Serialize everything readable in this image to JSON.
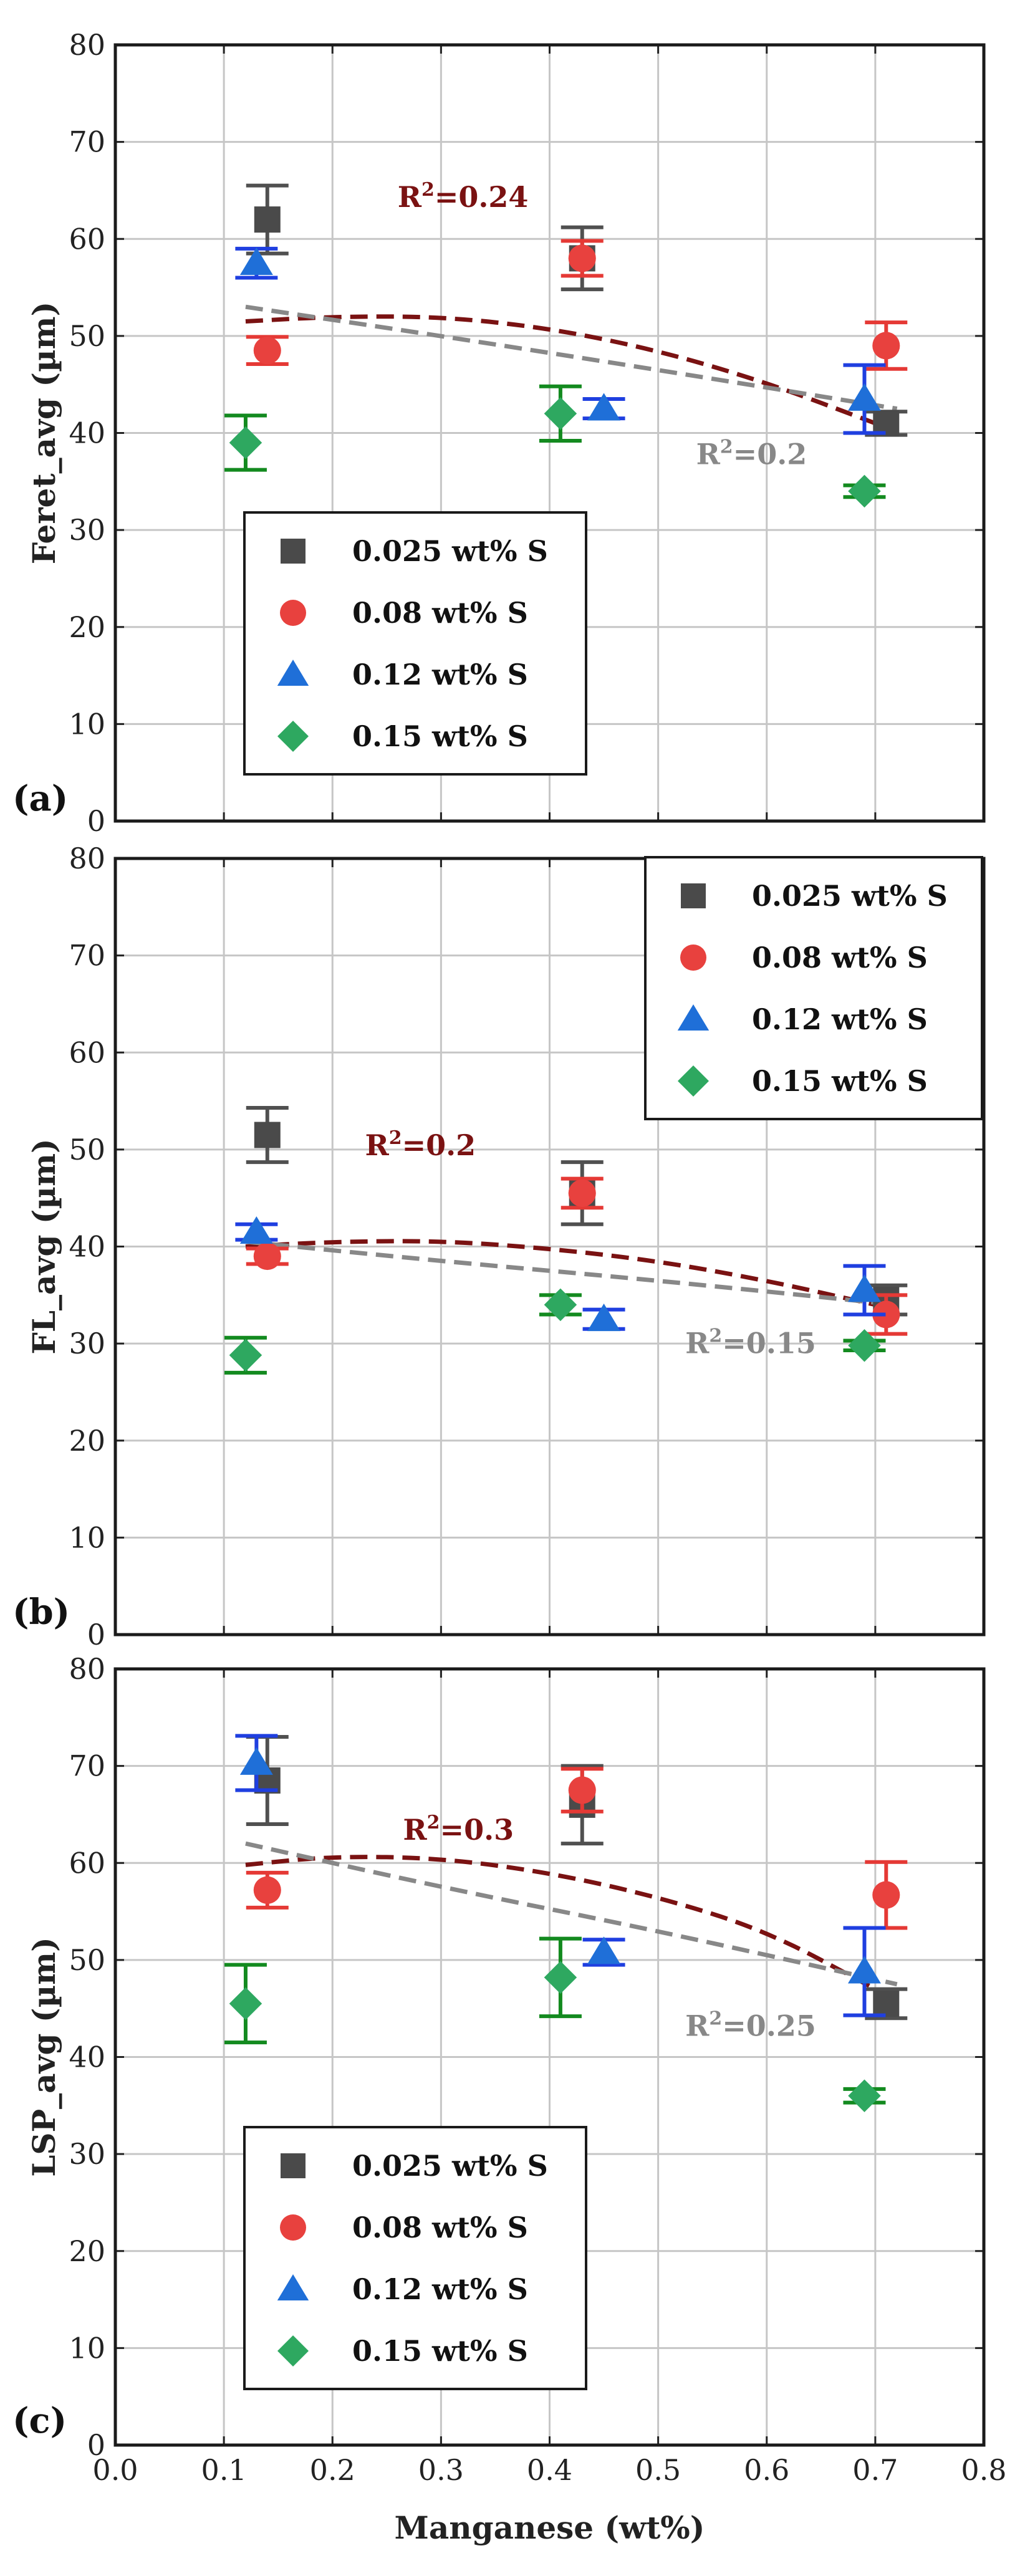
{
  "chart_data": [
    {
      "type": "scatter",
      "panel_label": "(a)",
      "ylabel": "Feret_avg (µm)",
      "xlabel": "",
      "xlim": [
        0.0,
        0.8
      ],
      "ylim": [
        0,
        80
      ],
      "x_ticks": [
        0.0,
        0.1,
        0.2,
        0.3,
        0.4,
        0.5,
        0.6,
        0.7,
        0.8
      ],
      "y_ticks": [
        0,
        10,
        20,
        30,
        40,
        50,
        60,
        70,
        80
      ],
      "y_tick_labels": [
        "0",
        "10",
        "20",
        "30",
        "40",
        "50",
        "60",
        "70",
        "80"
      ],
      "show_x_tick_labels": false,
      "grid": true,
      "legend_position": "bottom-left",
      "series": [
        {
          "name": "0.025 wt% S",
          "marker": "square",
          "color": "#4a4a4a",
          "err_color": "#505050",
          "points": [
            {
              "x": 0.14,
              "y": 62,
              "err": 3.5
            },
            {
              "x": 0.43,
              "y": 58,
              "err": 3.2
            },
            {
              "x": 0.71,
              "y": 41,
              "err": 1.2
            }
          ]
        },
        {
          "name": "0.08 wt% S",
          "marker": "circle",
          "color": "#e8413e",
          "err_color": "#e53935",
          "points": [
            {
              "x": 0.14,
              "y": 48.5,
              "err": 1.4
            },
            {
              "x": 0.43,
              "y": 58,
              "err": 1.8
            },
            {
              "x": 0.71,
              "y": 49,
              "err": 2.4
            }
          ]
        },
        {
          "name": "0.12 wt% S",
          "marker": "triangle",
          "color": "#1f6fd8",
          "err_color": "#1f3fe0",
          "points": [
            {
              "x": 0.13,
              "y": 57.5,
              "err": 1.5
            },
            {
              "x": 0.45,
              "y": 42.5,
              "err": 1.0
            },
            {
              "x": 0.69,
              "y": 43.5,
              "err": 3.5
            }
          ]
        },
        {
          "name": "0.15 wt% S",
          "marker": "diamond",
          "color": "#2ea860",
          "err_color": "#138a1f",
          "points": [
            {
              "x": 0.12,
              "y": 39,
              "err": 2.8
            },
            {
              "x": 0.41,
              "y": 42,
              "err": 2.8
            },
            {
              "x": 0.69,
              "y": 34,
              "err": 0.6
            }
          ]
        }
      ],
      "trendlines": [
        {
          "color": "#7a1212",
          "x": [
            0.12,
            0.2,
            0.3,
            0.4,
            0.5,
            0.6,
            0.7
          ],
          "y": [
            51.5,
            52.0,
            52.0,
            50.8,
            48.5,
            45.2,
            41.0
          ],
          "label": "R",
          "label_exp": "2",
          "label_rest": "=0.24",
          "label_x": 0.26,
          "label_y": 63.3
        },
        {
          "color": "#888888",
          "x": [
            0.12,
            0.3,
            0.5,
            0.72
          ],
          "y": [
            53.0,
            50.0,
            46.5,
            42.5
          ],
          "label": "R",
          "label_exp": "2",
          "label_rest": "=0.2",
          "label_x": 0.535,
          "label_y": 36.8
        }
      ]
    },
    {
      "type": "scatter",
      "panel_label": "(b)",
      "ylabel": "FL_avg (µm)",
      "xlabel": "",
      "xlim": [
        0.0,
        0.8
      ],
      "ylim": [
        0,
        80
      ],
      "x_ticks": [
        0.0,
        0.1,
        0.2,
        0.3,
        0.4,
        0.5,
        0.6,
        0.7,
        0.8
      ],
      "y_ticks": [
        0,
        10,
        20,
        30,
        40,
        50,
        60,
        70,
        80
      ],
      "y_tick_labels": [
        "0",
        "10",
        "20",
        "30",
        "40",
        "50",
        "60",
        "70",
        "80"
      ],
      "show_x_tick_labels": false,
      "grid": true,
      "legend_position": "top-right",
      "series": [
        {
          "name": "0.025 wt% S",
          "marker": "square",
          "color": "#4a4a4a",
          "err_color": "#505050",
          "points": [
            {
              "x": 0.14,
              "y": 51.5,
              "err": 2.8
            },
            {
              "x": 0.43,
              "y": 45.5,
              "err": 3.2
            },
            {
              "x": 0.71,
              "y": 34.5,
              "err": 1.5
            }
          ]
        },
        {
          "name": "0.08 wt% S",
          "marker": "circle",
          "color": "#e8413e",
          "err_color": "#e53935",
          "points": [
            {
              "x": 0.14,
              "y": 39,
              "err": 0.8
            },
            {
              "x": 0.43,
              "y": 45.5,
              "err": 1.5
            },
            {
              "x": 0.71,
              "y": 33,
              "err": 2.0
            }
          ]
        },
        {
          "name": "0.12 wt% S",
          "marker": "triangle",
          "color": "#1f6fd8",
          "err_color": "#1f3fe0",
          "points": [
            {
              "x": 0.13,
              "y": 41.5,
              "err": 0.8
            },
            {
              "x": 0.45,
              "y": 32.5,
              "err": 1.0
            },
            {
              "x": 0.69,
              "y": 35.5,
              "err": 2.5
            }
          ]
        },
        {
          "name": "0.15 wt% S",
          "marker": "diamond",
          "color": "#2ea860",
          "err_color": "#138a1f",
          "points": [
            {
              "x": 0.12,
              "y": 28.8,
              "err": 1.8
            },
            {
              "x": 0.41,
              "y": 34,
              "err": 1.0
            },
            {
              "x": 0.69,
              "y": 29.8,
              "err": 0.5
            }
          ]
        }
      ],
      "trendlines": [
        {
          "color": "#7a1212",
          "x": [
            0.12,
            0.2,
            0.3,
            0.4,
            0.5,
            0.6,
            0.7
          ],
          "y": [
            40.0,
            40.5,
            40.6,
            39.8,
            38.5,
            36.5,
            34.0
          ],
          "label": "R",
          "label_exp": "2",
          "label_rest": "=0.2",
          "label_x": 0.23,
          "label_y": 49.4
        },
        {
          "color": "#888888",
          "x": [
            0.12,
            0.3,
            0.5,
            0.72
          ],
          "y": [
            40.5,
            38.5,
            36.5,
            34.0
          ],
          "label": "R",
          "label_exp": "2",
          "label_rest": "=0.15",
          "label_x": 0.525,
          "label_y": 29.0
        }
      ]
    },
    {
      "type": "scatter",
      "panel_label": "(c)",
      "ylabel": "LSP_avg (µm)",
      "xlabel": "Manganese (wt%)",
      "xlim": [
        0.0,
        0.8
      ],
      "ylim": [
        0,
        80
      ],
      "x_ticks": [
        0.0,
        0.1,
        0.2,
        0.3,
        0.4,
        0.5,
        0.6,
        0.7,
        0.8
      ],
      "x_tick_labels": [
        "0.0",
        "0.1",
        "0.2",
        "0.3",
        "0.4",
        "0.5",
        "0.6",
        "0.7",
        "0.8"
      ],
      "y_ticks": [
        0,
        10,
        20,
        30,
        40,
        50,
        60,
        70,
        80
      ],
      "y_tick_labels": [
        "0",
        "10",
        "20",
        "30",
        "40",
        "50",
        "60",
        "70",
        "80"
      ],
      "show_x_tick_labels": true,
      "grid": true,
      "legend_position": "bottom-left",
      "series": [
        {
          "name": "0.025 wt% S",
          "marker": "square",
          "color": "#4a4a4a",
          "err_color": "#505050",
          "points": [
            {
              "x": 0.14,
              "y": 68.5,
              "err": 4.5
            },
            {
              "x": 0.43,
              "y": 66,
              "err": 4.0
            },
            {
              "x": 0.71,
              "y": 45.5,
              "err": 1.5
            }
          ]
        },
        {
          "name": "0.08 wt% S",
          "marker": "circle",
          "color": "#e8413e",
          "err_color": "#e53935",
          "points": [
            {
              "x": 0.14,
              "y": 57.2,
              "err": 1.8
            },
            {
              "x": 0.43,
              "y": 67.5,
              "err": 2.2
            },
            {
              "x": 0.71,
              "y": 56.7,
              "err": 3.4
            }
          ]
        },
        {
          "name": "0.12 wt% S",
          "marker": "triangle",
          "color": "#1f6fd8",
          "err_color": "#1f3fe0",
          "points": [
            {
              "x": 0.13,
              "y": 70.3,
              "err": 2.8
            },
            {
              "x": 0.45,
              "y": 50.8,
              "err": 1.3
            },
            {
              "x": 0.69,
              "y": 48.8,
              "err": 4.5
            }
          ]
        },
        {
          "name": "0.15 wt% S",
          "marker": "diamond",
          "color": "#2ea860",
          "err_color": "#138a1f",
          "points": [
            {
              "x": 0.12,
              "y": 45.5,
              "err": 4.0
            },
            {
              "x": 0.41,
              "y": 48.2,
              "err": 4.0
            },
            {
              "x": 0.69,
              "y": 36,
              "err": 0.7
            }
          ]
        }
      ],
      "trendlines": [
        {
          "color": "#7a1212",
          "x": [
            0.12,
            0.2,
            0.3,
            0.4,
            0.5,
            0.6,
            0.7
          ],
          "y": [
            59.8,
            60.7,
            60.5,
            59.0,
            56.5,
            53.0,
            47.0
          ],
          "label": "R",
          "label_exp": "2",
          "label_rest": "=0.3",
          "label_x": 0.265,
          "label_y": 62.4
        },
        {
          "color": "#888888",
          "x": [
            0.12,
            0.3,
            0.5,
            0.72
          ],
          "y": [
            62.0,
            57.5,
            53.0,
            47.5
          ],
          "label": "R",
          "label_exp": "2",
          "label_rest": "=0.25",
          "label_x": 0.525,
          "label_y": 42.2
        }
      ]
    }
  ]
}
